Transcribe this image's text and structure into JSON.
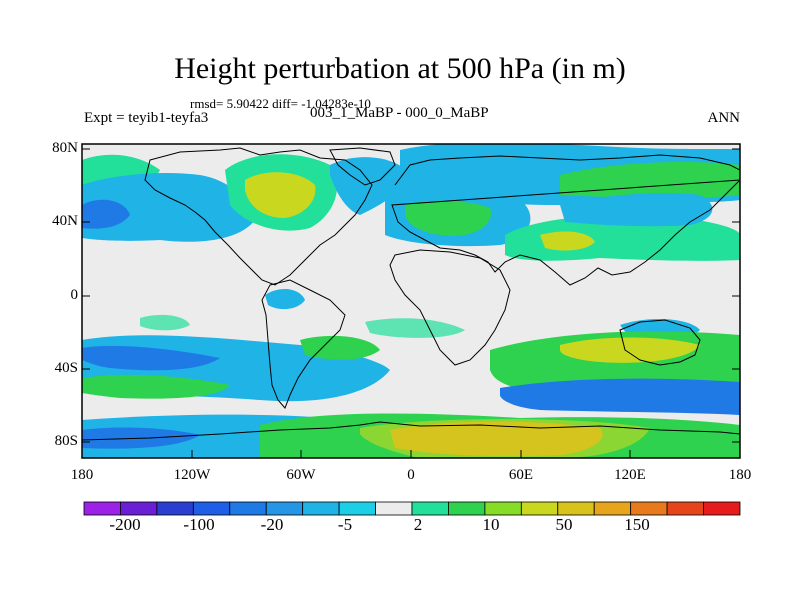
{
  "title": "Height perturbation at 500 hPa (in m)",
  "stats_line": "rmsd= 5.90422 diff= -1.04283e-10",
  "left_label": "Expt = teyib1-teyfa3",
  "center_label": "003_1_MaBP - 000_0_MaBP",
  "right_label": "ANN",
  "lat_labels": [
    "80N",
    "40N",
    "0",
    "40S",
    "80S"
  ],
  "lon_labels": [
    "180",
    "120W",
    "60W",
    "0",
    "60E",
    "120E",
    "180"
  ],
  "colorbar": {
    "colors": [
      "#9b22e6",
      "#6b1fd4",
      "#2a3fd0",
      "#1f5ee6",
      "#1f7ae6",
      "#2596e6",
      "#1fb3e6",
      "#1ccfe6",
      "#ececec",
      "#22e09a",
      "#2fd24e",
      "#86dc26",
      "#c9d81f",
      "#d9c21c",
      "#e6a51c",
      "#e67a1c",
      "#e6451c",
      "#e61c1c"
    ],
    "labels": [
      "-200",
      "-100",
      "-20",
      "-5",
      "2",
      "10",
      "50",
      "150"
    ]
  },
  "colors": {
    "neutral": "#ececec",
    "light_blue": "#1ccfe6",
    "mid_blue": "#1fb3e6",
    "blue": "#1f7ae6",
    "deep_blue": "#1f5ee6",
    "green": "#22e09a",
    "light_green": "#2fd24e",
    "yellow_green": "#c9d81f",
    "orange": "#e6a51c"
  }
}
